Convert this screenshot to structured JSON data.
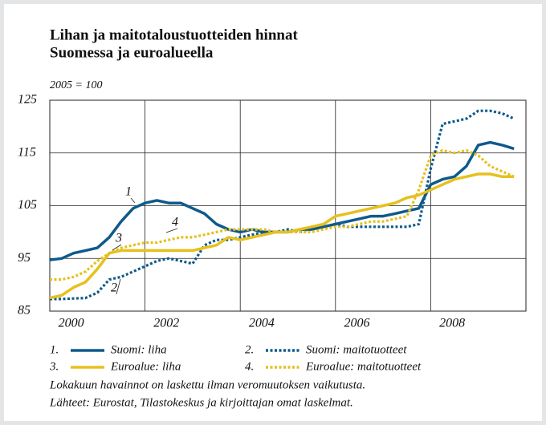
{
  "chart_data": {
    "type": "line",
    "title": [
      "Lihan ja maitotaloustuotteiden hinnat",
      "Suomessa ja euroalueella"
    ],
    "y_unit": "2005 = 100",
    "x": [
      2000,
      2000.25,
      2000.5,
      2000.75,
      2001,
      2001.25,
      2001.5,
      2001.75,
      2002,
      2002.25,
      2002.5,
      2002.75,
      2003,
      2003.25,
      2003.5,
      2003.75,
      2004,
      2004.25,
      2004.5,
      2004.75,
      2005,
      2005.25,
      2005.5,
      2005.75,
      2006,
      2006.25,
      2006.5,
      2006.75,
      2007,
      2007.25,
      2007.5,
      2007.75,
      2008,
      2008.25,
      2008.5,
      2008.75,
      2009,
      2009.25,
      2009.5,
      2009.75
    ],
    "series": [
      {
        "name": "Suomi: liha",
        "number": "1.",
        "color": "#0f5a8c",
        "dash": false,
        "values": [
          94.7,
          95,
          96,
          96.5,
          97,
          99,
          102,
          104.5,
          105.5,
          106,
          105.5,
          105.5,
          104.5,
          103.5,
          101.5,
          100.5,
          100,
          100.5,
          100,
          100,
          100,
          100.5,
          100.5,
          101,
          101.5,
          102,
          102.5,
          103,
          103,
          103.5,
          104,
          104.5,
          109,
          110,
          110.5,
          112.5,
          116.5,
          117,
          116.5,
          115.8
        ]
      },
      {
        "name": "Suomi: maitotuotteet",
        "number": "2.",
        "color": "#0f5a8c",
        "dash": true,
        "values": [
          87.3,
          87.3,
          87.4,
          87.5,
          88.5,
          91,
          91.5,
          92.5,
          93.5,
          94.5,
          95,
          94.5,
          94,
          97.5,
          98.5,
          98.5,
          99,
          99.5,
          100,
          100,
          100.5,
          100,
          100.5,
          101,
          101.5,
          101,
          101,
          101,
          101,
          101,
          101,
          101.5,
          112,
          120.5,
          121,
          121.5,
          123,
          123,
          122.5,
          121.5
        ]
      },
      {
        "name": "Euroalue: liha",
        "number": "3.",
        "color": "#e6c01e",
        "dash": false,
        "values": [
          87.5,
          88,
          89.5,
          90.5,
          93,
          96,
          96.5,
          96.5,
          96.5,
          96.5,
          96.5,
          96.5,
          96.5,
          97,
          97.5,
          99,
          98.5,
          99,
          99.5,
          100,
          100,
          100.5,
          101,
          101.5,
          103,
          103.5,
          104,
          104.5,
          105,
          105.5,
          106.5,
          107,
          108,
          109,
          110,
          110.5,
          111,
          111,
          110.5,
          110.5
        ]
      },
      {
        "name": "Euroalue: maitotuotteet",
        "number": "4.",
        "color": "#e6c01e",
        "dash": true,
        "values": [
          91,
          91,
          91.5,
          92.5,
          94.5,
          96,
          97,
          97.5,
          98,
          98,
          98.5,
          99,
          99,
          99.5,
          100,
          100.5,
          100.5,
          100.5,
          100.5,
          100,
          100,
          100,
          100,
          100.5,
          101,
          101,
          101.5,
          102,
          102,
          102.5,
          103,
          108,
          114.5,
          115.5,
          115,
          115.5,
          114.5,
          112.5,
          111.5,
          110.5
        ]
      }
    ],
    "annotations": [
      "1",
      "2",
      "3",
      "4"
    ],
    "xlim": [
      2000,
      2010
    ],
    "xticks": [
      2000,
      2002,
      2004,
      2006,
      2008
    ],
    "ylim": [
      85,
      125
    ],
    "yticks": [
      85,
      95,
      105,
      115,
      125
    ],
    "grid": true,
    "notes": [
      "Lokakuun havainnot on laskettu ilman veromuutoksen vaikutusta.",
      "Lähteet: Eurostat, Tilastokeskus ja kirjoittajan omat laskelmat."
    ]
  }
}
